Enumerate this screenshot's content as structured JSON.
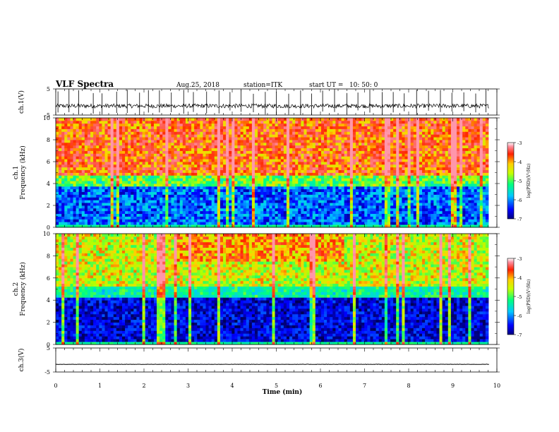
{
  "header": {
    "title": "VLF Spectra",
    "date": "Aug.25, 2018",
    "station": "station=ITK",
    "start_ut": "start UT =   10: 50: 0"
  },
  "chart_data": [
    {
      "type": "line",
      "name": "ch1-waveform",
      "ylabel": "ch.1(V)",
      "ylim": [
        -5,
        5
      ],
      "yticks": [
        "5",
        "-5"
      ],
      "xlim": [
        0,
        10
      ],
      "baseline": -1.5,
      "spike_times": [
        0.05,
        0.3,
        0.52,
        0.85,
        1.05,
        1.38,
        1.62,
        1.9,
        2.1,
        2.35,
        2.62,
        2.9,
        3.12,
        3.42,
        3.7,
        3.95,
        4.2,
        4.48,
        4.75,
        5.0,
        5.28,
        5.55,
        5.8,
        6.05,
        6.32,
        6.6,
        6.85,
        7.12,
        7.4,
        7.65,
        7.9,
        8.18,
        8.45,
        8.72,
        8.98,
        9.25,
        9.52,
        9.75
      ]
    },
    {
      "type": "heatmap",
      "name": "ch1-spectrogram",
      "ylabel": "ch.1\nFrequency (kHz)",
      "ylim": [
        0,
        10
      ],
      "yticks": [
        "0",
        "2",
        "4",
        "6",
        "8",
        "10"
      ],
      "xlim": [
        0,
        10
      ],
      "colorbar": {
        "label": "log(PSD)(V²/Hz)",
        "ticks": [
          "-3",
          "-4",
          "-5",
          "-6",
          "-7"
        ],
        "range": [
          -7,
          -3
        ]
      },
      "band_edge_khz": 4.8
    },
    {
      "type": "heatmap",
      "name": "ch2-spectrogram",
      "ylabel": "ch.2\nFrequency (kHz)",
      "ylim": [
        0,
        10
      ],
      "yticks": [
        "0",
        "2",
        "4",
        "6",
        "8",
        "10"
      ],
      "xlim": [
        0,
        10
      ],
      "colorbar": {
        "label": "log(PSD)(V²/Hz)",
        "ticks": [
          "-3",
          "-4",
          "-5",
          "-6",
          "-7"
        ],
        "range": [
          -7,
          -3
        ]
      },
      "band_edge_khz": 5.2
    },
    {
      "type": "line",
      "name": "ch3-waveform",
      "ylabel": "ch.3(V)",
      "ylim": [
        -5,
        5
      ],
      "yticks": [
        "5",
        "-5"
      ],
      "xlim": [
        0,
        10
      ],
      "baseline": -1.8
    }
  ],
  "xaxis": {
    "label": "Time (min)",
    "ticks": [
      "0",
      "1",
      "2",
      "3",
      "4",
      "5",
      "6",
      "7",
      "8",
      "9",
      "10"
    ]
  }
}
